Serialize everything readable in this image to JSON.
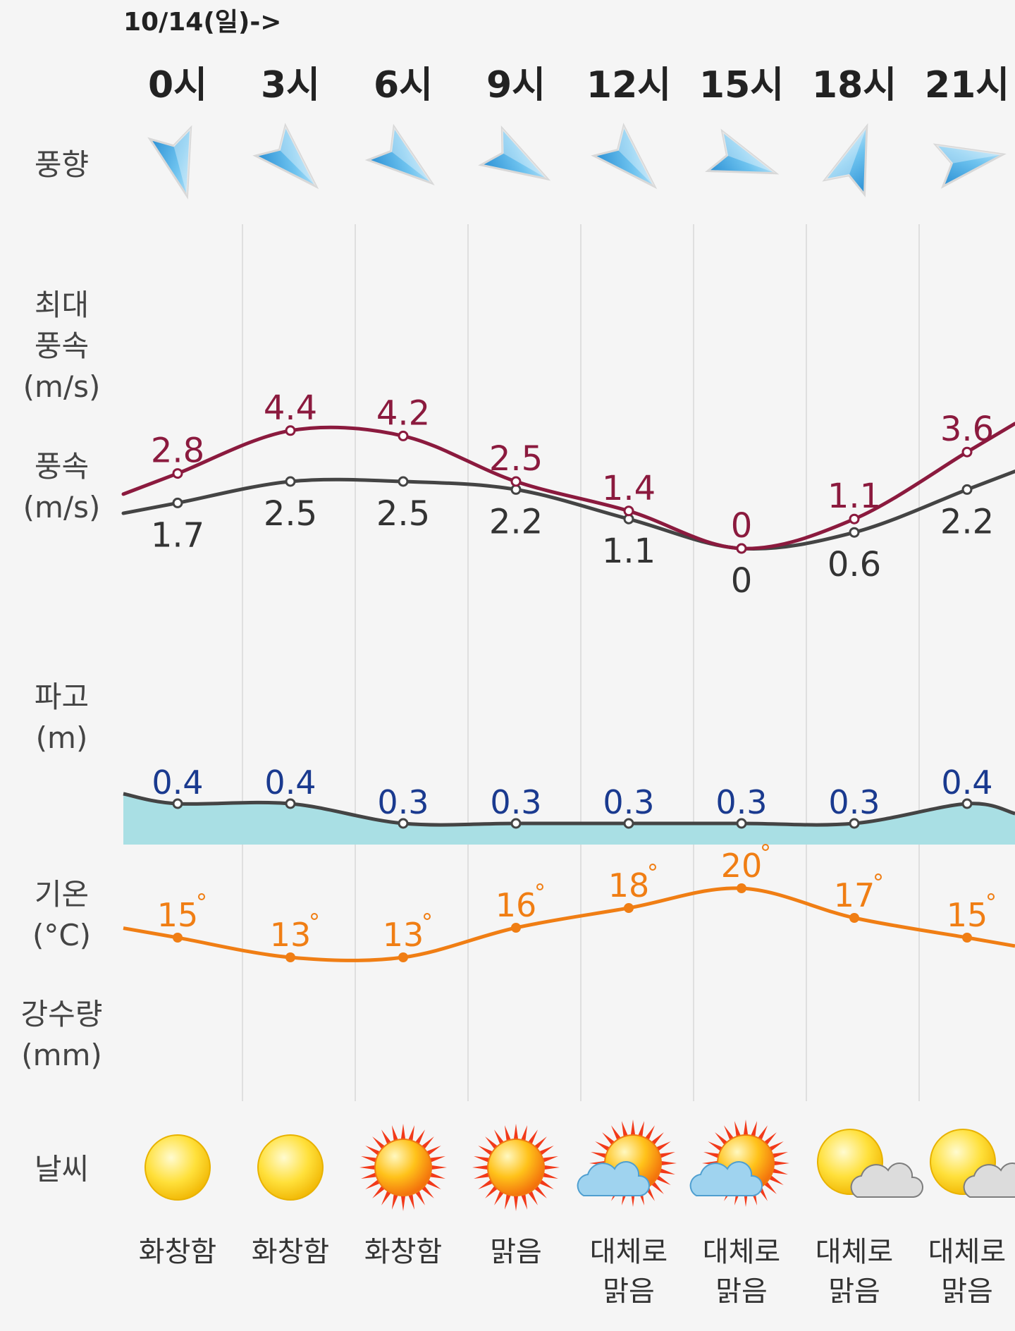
{
  "date_label": "10/14(일)->",
  "hours": [
    "0시",
    "3시",
    "6시",
    "9시",
    "12시",
    "15시",
    "18시",
    "21시"
  ],
  "row_labels": {
    "wind_dir": "풍향",
    "max_wind": [
      "최대",
      "풍속",
      "(m/s)"
    ],
    "wind": [
      "풍속",
      "(m/s)"
    ],
    "wave": [
      "파고",
      "(m)"
    ],
    "temp": [
      "기온",
      "(°C)"
    ],
    "rain": [
      "강수량",
      "(mm)"
    ],
    "weather": "날씨"
  },
  "wind_direction": {
    "description": "arrow direction each arrow points to, in compass degrees",
    "pointing_deg": [
      165,
      135,
      128,
      120,
      135,
      110,
      20,
      80
    ]
  },
  "sky": [
    {
      "text": [
        "화창함"
      ],
      "icon": "sun-icon"
    },
    {
      "text": [
        "화창함"
      ],
      "icon": "sun-icon"
    },
    {
      "text": [
        "화창함"
      ],
      "icon": "bright-sun-icon"
    },
    {
      "text": [
        "맑음"
      ],
      "icon": "bright-sun-icon"
    },
    {
      "text": [
        "대체로",
        "맑음"
      ],
      "icon": "sun-blue-cloud-icon"
    },
    {
      "text": [
        "대체로",
        "맑음"
      ],
      "icon": "sun-blue-cloud-icon"
    },
    {
      "text": [
        "대체로",
        "맑음"
      ],
      "icon": "sun-gray-cloud-icon"
    },
    {
      "text": [
        "대체로",
        "맑음"
      ],
      "icon": "sun-gray-cloud-icon"
    }
  ],
  "colors": {
    "max_wind": "#8b1a3e",
    "wind": "#444444",
    "wave_fill": "#a9dfe4",
    "wave_line": "#444444",
    "wave_label": "#1a3a8f",
    "temp": "#f07e14",
    "grid": "#d8d8d8"
  },
  "chart_data": [
    {
      "type": "line",
      "name": "max-wind-speed",
      "x": [
        "0시",
        "3시",
        "6시",
        "9시",
        "12시",
        "15시",
        "18시",
        "21시"
      ],
      "values": [
        2.8,
        4.4,
        4.2,
        2.5,
        1.4,
        0,
        1.1,
        3.6
      ],
      "labels": [
        "2.8",
        "4.4",
        "4.2",
        "2.5",
        "1.4",
        "0",
        "1.1",
        "3.6"
      ]
    },
    {
      "type": "line",
      "name": "wind-speed",
      "x": [
        "0시",
        "3시",
        "6시",
        "9시",
        "12시",
        "15시",
        "18시",
        "21시"
      ],
      "values": [
        1.7,
        2.5,
        2.5,
        2.2,
        1.1,
        0,
        0.6,
        2.2
      ],
      "labels": [
        "1.7",
        "2.5",
        "2.5",
        "2.2",
        "1.1",
        "0",
        "0.6",
        "2.2"
      ]
    },
    {
      "type": "area",
      "name": "wave-height",
      "x": [
        "0시",
        "3시",
        "6시",
        "9시",
        "12시",
        "15시",
        "18시",
        "21시"
      ],
      "values": [
        0.4,
        0.4,
        0.3,
        0.3,
        0.3,
        0.3,
        0.3,
        0.4
      ],
      "labels": [
        "0.4",
        "0.4",
        "0.3",
        "0.3",
        "0.3",
        "0.3",
        "0.3",
        "0.4"
      ]
    },
    {
      "type": "line",
      "name": "temperature",
      "x": [
        "0시",
        "3시",
        "6시",
        "9시",
        "12시",
        "15시",
        "18시",
        "21시"
      ],
      "values": [
        15,
        13,
        13,
        16,
        18,
        20,
        17,
        15
      ],
      "labels": [
        "15",
        "13",
        "13",
        "16",
        "18",
        "20",
        "17",
        "15"
      ]
    }
  ]
}
